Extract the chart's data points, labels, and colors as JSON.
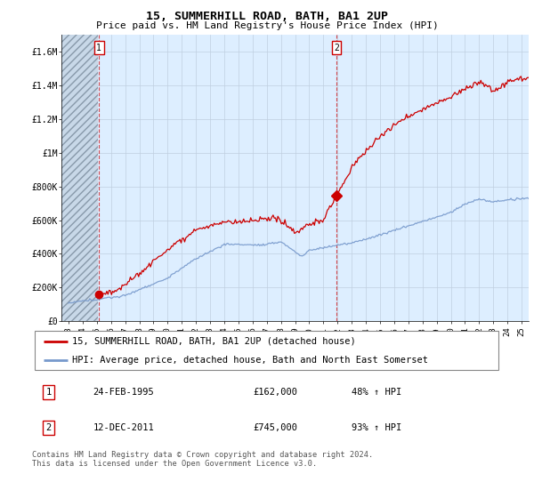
{
  "title": "15, SUMMERHILL ROAD, BATH, BA1 2UP",
  "subtitle": "Price paid vs. HM Land Registry's House Price Index (HPI)",
  "bg_color": "#ddeeff",
  "grid_color": "#c0cfe0",
  "sale1": {
    "date": "24-FEB-1995",
    "year": 1995.15,
    "price": 162000,
    "label": "1"
  },
  "sale2": {
    "date": "12-DEC-2011",
    "year": 2011.92,
    "price": 745000,
    "label": "2"
  },
  "legend_line1": "15, SUMMERHILL ROAD, BATH, BA1 2UP (detached house)",
  "legend_line2": "HPI: Average price, detached house, Bath and North East Somerset",
  "table_row1": [
    "1",
    "24-FEB-1995",
    "£162,000",
    "48% ↑ HPI"
  ],
  "table_row2": [
    "2",
    "12-DEC-2011",
    "£745,000",
    "93% ↑ HPI"
  ],
  "footnote": "Contains HM Land Registry data © Crown copyright and database right 2024.\nThis data is licensed under the Open Government Licence v3.0.",
  "ylim": [
    0,
    1700000
  ],
  "xlim_start": 1992.5,
  "xlim_end": 2025.5,
  "red_line_color": "#cc0000",
  "blue_line_color": "#7799cc",
  "marker_color": "#cc0000",
  "hatch_end": 1995.1
}
